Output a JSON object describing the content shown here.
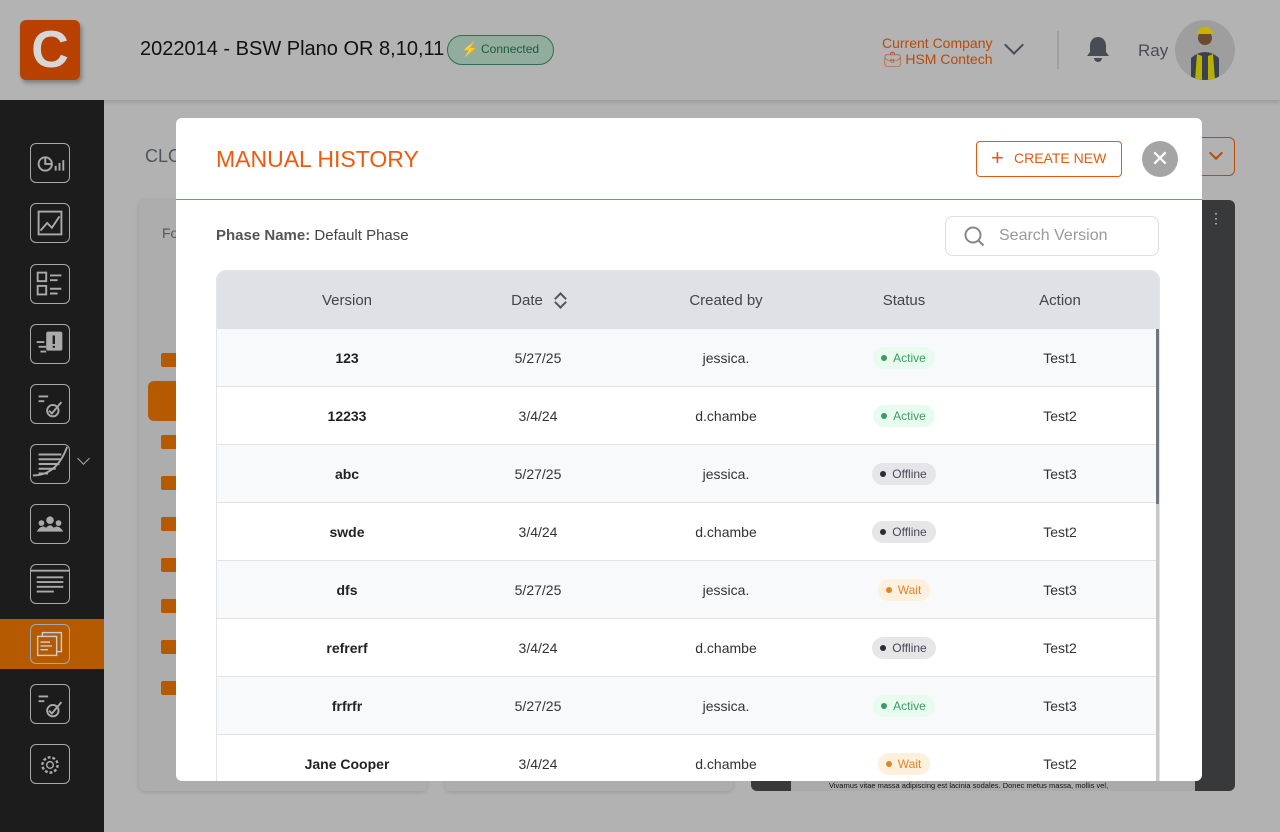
{
  "header": {
    "logo_letter": "C",
    "project_title": "2022014 - BSW Plano OR 8,10,11",
    "connection_status": "Connected",
    "company_label": "Current Company",
    "company_name": "HSM Contech",
    "user_name": "Ray",
    "brand_color": "#b84000"
  },
  "sidebar": {
    "items": [
      "dashboard-icon",
      "photo-edit-icon",
      "checklist-grid-icon",
      "issue-icon",
      "task-check-icon",
      "document-icon",
      "team-icon",
      "list-icon",
      "manuals-icon",
      "task-check-icon",
      "settings-icon"
    ],
    "active_index": 8
  },
  "background": {
    "page_title_partial": "CLO",
    "panel_label_partial": "Fo",
    "preview_text": "Vivamus vitae massa adipiscing est lacinia sodales. Donec metus massa, mollis vel,"
  },
  "modal": {
    "title": "MANUAL HISTORY",
    "create_label": "CREATE NEW",
    "phase_label": "Phase Name:",
    "phase_value": "Default Phase",
    "search_placeholder": "Search Version",
    "columns": [
      "Version",
      "Date",
      "Created by",
      "Status",
      "Action"
    ],
    "rows": [
      {
        "version": "123",
        "date": "5/27/25",
        "created_by": "jessica.",
        "status": "Active",
        "action": "Test1"
      },
      {
        "version": "12233",
        "date": "3/4/24",
        "created_by": "d.chambe",
        "status": "Active",
        "action": "Test2"
      },
      {
        "version": "abc",
        "date": "5/27/25",
        "created_by": "jessica.",
        "status": "Offline",
        "action": "Test3"
      },
      {
        "version": "swde",
        "date": "3/4/24",
        "created_by": "d.chambe",
        "status": "Offline",
        "action": "Test2"
      },
      {
        "version": "dfs",
        "date": "5/27/25",
        "created_by": "jessica.",
        "status": "Wait",
        "action": "Test3"
      },
      {
        "version": "refrerf",
        "date": "3/4/24",
        "created_by": "d.chambe",
        "status": "Offline",
        "action": "Test2"
      },
      {
        "version": "frfrfr",
        "date": "5/27/25",
        "created_by": "jessica.",
        "status": "Active",
        "action": "Test3"
      },
      {
        "version": "Jane Cooper",
        "date": "3/4/24",
        "created_by": "d.chambe",
        "status": "Wait",
        "action": "Test2"
      }
    ],
    "accent_color": "#f15a0c"
  }
}
